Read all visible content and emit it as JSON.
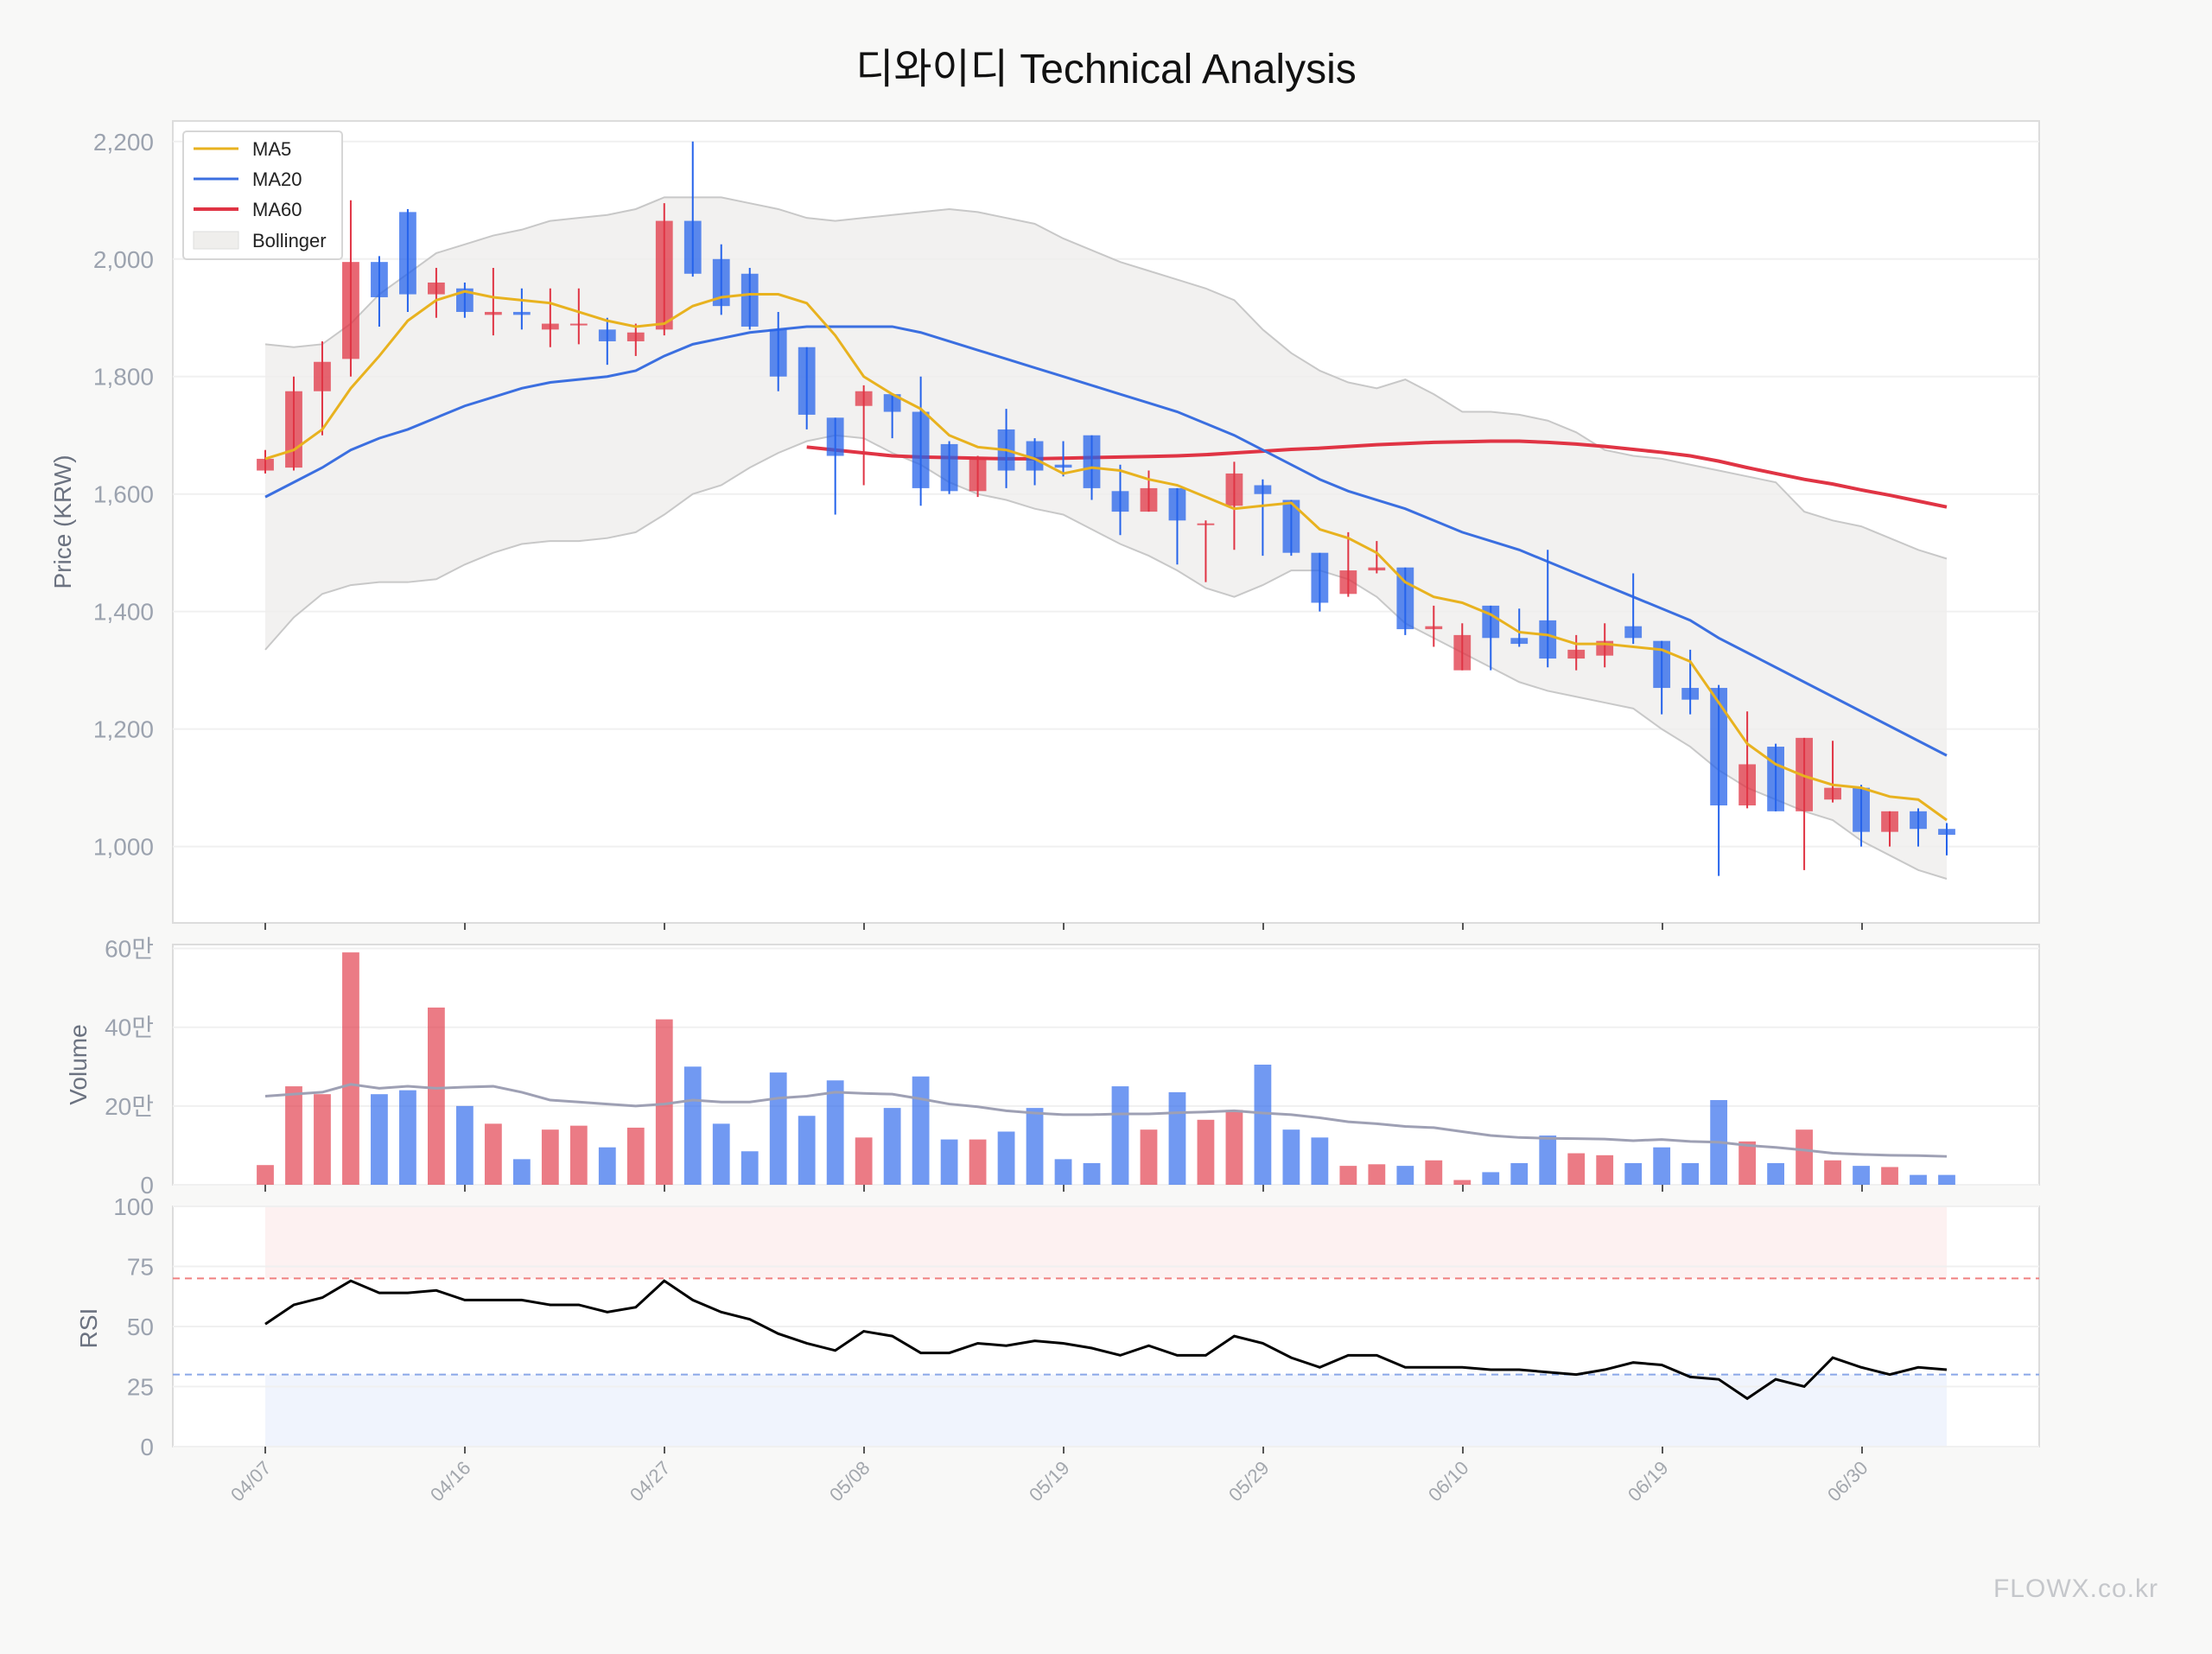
{
  "title": "디와이디 Technical Analysis",
  "watermark": "FLOWX.co.kr",
  "colors": {
    "up": "#e03444",
    "down": "#2563eb",
    "ma5": "#e8b21f",
    "ma20": "#3b6fe0",
    "ma60": "#e03444",
    "band": "#efeeec",
    "rsi": "#000000",
    "overbought": "#f08080",
    "oversold": "#8aa8e8",
    "vol_ma": "#9ea0b4"
  },
  "legend": [
    "MA5",
    "MA20",
    "MA60",
    "Bollinger"
  ],
  "price_panel": {
    "ylabel": "Price (KRW)",
    "yticks": [
      "1,000",
      "1,200",
      "1,400",
      "1,600",
      "1,800",
      "2,000",
      "2,200"
    ],
    "ylim": [
      870,
      2235
    ]
  },
  "volume_panel": {
    "ylabel": "Volume",
    "yticks": [
      "0",
      "20만",
      "40만",
      "60만"
    ],
    "ylim": [
      0,
      610000
    ]
  },
  "rsi_panel": {
    "ylabel": "RSI",
    "yticks": [
      "0",
      "25",
      "50",
      "75",
      "100"
    ],
    "ylim": [
      0,
      100
    ],
    "overbought": 70,
    "oversold": 30
  },
  "x_labels": [
    "04/07",
    "04/16",
    "04/27",
    "05/08",
    "05/19",
    "05/29",
    "06/10",
    "06/19",
    "06/30"
  ],
  "chart_data": {
    "type": "candlestick",
    "ohlc": [
      [
        1640,
        1675,
        1635,
        1660
      ],
      [
        1645,
        1800,
        1640,
        1775
      ],
      [
        1775,
        1860,
        1700,
        1825
      ],
      [
        1830,
        2100,
        1800,
        1995
      ],
      [
        1995,
        2005,
        1885,
        1935
      ],
      [
        2080,
        2085,
        1910,
        1940
      ],
      [
        1940,
        1985,
        1900,
        1960
      ],
      [
        1950,
        1960,
        1900,
        1910
      ],
      [
        1905,
        1985,
        1870,
        1910
      ],
      [
        1910,
        1950,
        1880,
        1905
      ],
      [
        1880,
        1950,
        1850,
        1890
      ],
      [
        1890,
        1950,
        1855,
        1890
      ],
      [
        1880,
        1900,
        1820,
        1860
      ],
      [
        1860,
        1890,
        1835,
        1875
      ],
      [
        1880,
        2095,
        1870,
        2065
      ],
      [
        2065,
        2200,
        1970,
        1975
      ],
      [
        2000,
        2025,
        1905,
        1920
      ],
      [
        1975,
        1985,
        1880,
        1885
      ],
      [
        1880,
        1910,
        1775,
        1800
      ],
      [
        1850,
        1850,
        1710,
        1735
      ],
      [
        1730,
        1730,
        1565,
        1665
      ],
      [
        1750,
        1785,
        1615,
        1775
      ],
      [
        1770,
        1770,
        1695,
        1740
      ],
      [
        1740,
        1800,
        1580,
        1610
      ],
      [
        1685,
        1690,
        1600,
        1605
      ],
      [
        1605,
        1665,
        1595,
        1660
      ],
      [
        1710,
        1745,
        1610,
        1640
      ],
      [
        1690,
        1695,
        1615,
        1640
      ],
      [
        1650,
        1690,
        1630,
        1645
      ],
      [
        1700,
        1700,
        1590,
        1610
      ],
      [
        1605,
        1650,
        1530,
        1570
      ],
      [
        1570,
        1640,
        1570,
        1610
      ],
      [
        1610,
        1610,
        1480,
        1555
      ],
      [
        1550,
        1555,
        1450,
        1550
      ],
      [
        1580,
        1655,
        1505,
        1635
      ],
      [
        1615,
        1625,
        1495,
        1600
      ],
      [
        1590,
        1590,
        1495,
        1500
      ],
      [
        1500,
        1500,
        1400,
        1415
      ],
      [
        1430,
        1535,
        1425,
        1470
      ],
      [
        1470,
        1520,
        1465,
        1475
      ],
      [
        1475,
        1475,
        1360,
        1370
      ],
      [
        1370,
        1410,
        1340,
        1375
      ],
      [
        1300,
        1380,
        1300,
        1360
      ],
      [
        1410,
        1410,
        1300,
        1355
      ],
      [
        1355,
        1405,
        1340,
        1345
      ],
      [
        1385,
        1505,
        1305,
        1320
      ],
      [
        1320,
        1360,
        1300,
        1335
      ],
      [
        1325,
        1380,
        1305,
        1350
      ],
      [
        1375,
        1465,
        1345,
        1355
      ],
      [
        1350,
        1350,
        1225,
        1270
      ],
      [
        1270,
        1335,
        1225,
        1250
      ],
      [
        1270,
        1275,
        950,
        1070
      ],
      [
        1070,
        1230,
        1065,
        1140
      ],
      [
        1170,
        1175,
        1060,
        1060
      ],
      [
        1060,
        1185,
        960,
        1185
      ],
      [
        1080,
        1180,
        1075,
        1100
      ],
      [
        1100,
        1105,
        1000,
        1025
      ],
      [
        1025,
        1060,
        1000,
        1060
      ],
      [
        1060,
        1065,
        1000,
        1030
      ],
      [
        1030,
        1040,
        985,
        1020
      ]
    ],
    "volume": [
      50000,
      250000,
      230000,
      590000,
      230000,
      240000,
      450000,
      200000,
      155000,
      65000,
      140000,
      150000,
      95000,
      145000,
      420000,
      300000,
      155000,
      85000,
      285000,
      175000,
      265000,
      120000,
      195000,
      275000,
      115000,
      115000,
      135000,
      195000,
      65000,
      55000,
      250000,
      140000,
      235000,
      165000,
      190000,
      305000,
      140000,
      120000,
      48000,
      52000,
      48000,
      62000,
      12000,
      32000,
      55000,
      125000,
      80000,
      75000,
      55000,
      95000,
      55000,
      215000,
      110000,
      55000,
      140000,
      62000,
      48000,
      45000,
      25000,
      25000
    ],
    "ma5": [
      1660,
      1675,
      1710,
      1780,
      1835,
      1895,
      1930,
      1945,
      1935,
      1930,
      1925,
      1910,
      1895,
      1885,
      1890,
      1920,
      1935,
      1940,
      1940,
      1925,
      1870,
      1800,
      1770,
      1745,
      1700,
      1680,
      1675,
      1660,
      1635,
      1645,
      1640,
      1625,
      1615,
      1595,
      1575,
      1580,
      1585,
      1540,
      1525,
      1500,
      1450,
      1425,
      1415,
      1395,
      1365,
      1360,
      1345,
      1345,
      1340,
      1335,
      1315,
      1245,
      1175,
      1140,
      1120,
      1105,
      1100,
      1085,
      1080,
      1045
    ],
    "ma20": [
      1595,
      1620,
      1645,
      1675,
      1695,
      1710,
      1730,
      1750,
      1765,
      1780,
      1790,
      1795,
      1800,
      1810,
      1835,
      1855,
      1865,
      1875,
      1880,
      1885,
      1885,
      1885,
      1885,
      1875,
      1860,
      1845,
      1830,
      1815,
      1800,
      1785,
      1770,
      1755,
      1740,
      1720,
      1700,
      1675,
      1650,
      1625,
      1605,
      1590,
      1575,
      1555,
      1535,
      1520,
      1505,
      1485,
      1465,
      1445,
      1425,
      1405,
      1385,
      1355,
      1330,
      1305,
      1280,
      1255,
      1230,
      1205,
      1180,
      1155
    ],
    "ma60_start_index": 19,
    "ma60": [
      1680,
      1675,
      1670,
      1665,
      1663,
      1662,
      1661,
      1660,
      1660,
      1661,
      1662,
      1663,
      1664,
      1665,
      1667,
      1670,
      1673,
      1676,
      1678,
      1681,
      1684,
      1686,
      1688,
      1689,
      1690,
      1690,
      1688,
      1685,
      1681,
      1676,
      1671,
      1665,
      1656,
      1645,
      1635,
      1625,
      1617,
      1607,
      1598,
      1588,
      1578
    ],
    "bb_upper": [
      1855,
      1850,
      1855,
      1890,
      1940,
      1975,
      2010,
      2025,
      2040,
      2050,
      2065,
      2070,
      2075,
      2085,
      2105,
      2105,
      2105,
      2095,
      2085,
      2070,
      2065,
      2070,
      2075,
      2080,
      2085,
      2080,
      2070,
      2060,
      2035,
      2015,
      1995,
      1980,
      1965,
      1950,
      1930,
      1880,
      1840,
      1810,
      1790,
      1780,
      1795,
      1770,
      1740,
      1740,
      1735,
      1725,
      1705,
      1675,
      1665,
      1660,
      1650,
      1640,
      1630,
      1620,
      1570,
      1555,
      1545,
      1525,
      1505,
      1490
    ],
    "bb_lower": [
      1335,
      1390,
      1430,
      1445,
      1450,
      1450,
      1455,
      1480,
      1500,
      1515,
      1520,
      1520,
      1525,
      1535,
      1565,
      1600,
      1615,
      1645,
      1670,
      1690,
      1700,
      1695,
      1670,
      1650,
      1620,
      1600,
      1590,
      1575,
      1565,
      1540,
      1515,
      1495,
      1470,
      1440,
      1425,
      1445,
      1470,
      1470,
      1455,
      1425,
      1380,
      1355,
      1330,
      1305,
      1280,
      1265,
      1255,
      1245,
      1235,
      1200,
      1170,
      1130,
      1100,
      1080,
      1060,
      1045,
      1010,
      985,
      960,
      945
    ],
    "vol_ma": [
      225000,
      230000,
      235000,
      255000,
      245000,
      250000,
      245000,
      248000,
      250000,
      235000,
      215000,
      210000,
      205000,
      200000,
      205000,
      215000,
      210000,
      210000,
      220000,
      225000,
      235000,
      232000,
      230000,
      218000,
      205000,
      198000,
      188000,
      182000,
      178000,
      178000,
      180000,
      180000,
      183000,
      185000,
      188000,
      182000,
      178000,
      170000,
      160000,
      155000,
      148000,
      145000,
      135000,
      125000,
      120000,
      118000,
      117000,
      116000,
      112000,
      115000,
      110000,
      108000,
      100000,
      95000,
      88000,
      80000,
      77000,
      75000,
      74000,
      72000
    ],
    "rsi": [
      51,
      59,
      62,
      69,
      64,
      64,
      65,
      61,
      61,
      61,
      59,
      59,
      56,
      58,
      69,
      61,
      56,
      53,
      47,
      43,
      40,
      48,
      46,
      39,
      39,
      43,
      42,
      44,
      43,
      41,
      38,
      42,
      38,
      38,
      46,
      43,
      37,
      33,
      38,
      38,
      33,
      33,
      33,
      32,
      32,
      31,
      30,
      32,
      35,
      34,
      29,
      28,
      20,
      28,
      25,
      37,
      33,
      30,
      33,
      32
    ]
  }
}
